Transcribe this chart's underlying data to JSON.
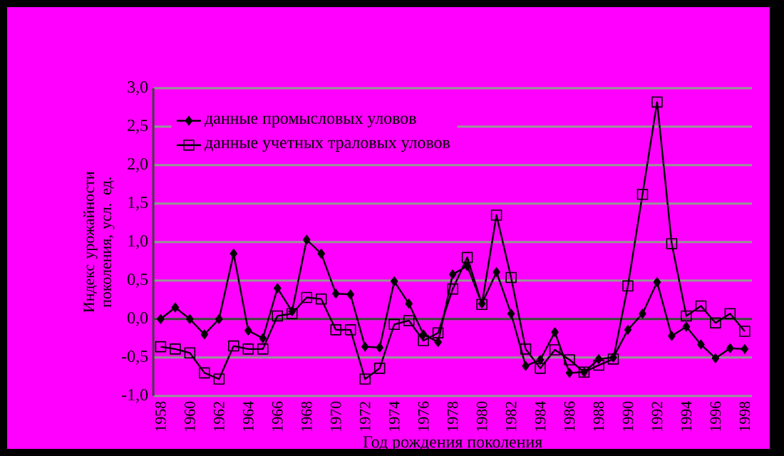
{
  "chart_data": {
    "type": "line",
    "xlabel": "Год рождения поколения",
    "ylabel": "Индекс урожайности поколения, усл. ед.",
    "categories": [
      "1958",
      null,
      "1960",
      null,
      "1962",
      null,
      "1964",
      null,
      "1966",
      null,
      "1968",
      null,
      "1970",
      null,
      "1972",
      null,
      "1974",
      null,
      "1976",
      null,
      "1978",
      null,
      "1980",
      null,
      "1982",
      null,
      "1984",
      null,
      "1986",
      null,
      "1988",
      null,
      "1990",
      null,
      "1992",
      null,
      "1994",
      null,
      "1996",
      null,
      "1998"
    ],
    "series": [
      {
        "name": "данные промысловых уловов",
        "color": "#000000",
        "marker": "diamond",
        "values": [
          0.0,
          0.15,
          0.0,
          -0.2,
          0.0,
          0.85,
          -0.15,
          -0.25,
          0.4,
          0.1,
          1.03,
          0.85,
          0.33,
          0.32,
          -0.36,
          -0.37,
          0.49,
          0.2,
          -0.2,
          -0.3,
          0.58,
          0.69,
          0.2,
          0.61,
          0.07,
          -0.61,
          -0.53,
          -0.17,
          -0.7,
          -0.69,
          -0.52,
          -0.5,
          -0.14,
          0.07,
          0.48,
          -0.22,
          -0.1,
          -0.33,
          -0.51,
          -0.38,
          -0.39
        ]
      },
      {
        "name": "данные учетных траловых уловов",
        "color": "#000000",
        "marker": "square",
        "values": [
          -0.36,
          -0.39,
          -0.44,
          -0.7,
          -0.78,
          -0.35,
          -0.39,
          -0.39,
          0.04,
          0.07,
          0.28,
          0.26,
          -0.14,
          -0.14,
          -0.78,
          -0.64,
          -0.07,
          -0.02,
          -0.28,
          -0.18,
          0.39,
          0.8,
          0.19,
          1.35,
          0.54,
          -0.39,
          -0.64,
          -0.4,
          -0.53,
          -0.69,
          -0.6,
          -0.52,
          0.43,
          1.62,
          2.82,
          0.98,
          0.04,
          0.17,
          -0.05,
          0.07,
          -0.16
        ]
      }
    ],
    "ylim": [
      -1.0,
      3.0
    ],
    "yticks": [
      {
        "value": -1.0,
        "label": "-1,0"
      },
      {
        "value": -0.5,
        "label": "-0,5"
      },
      {
        "value": 0.0,
        "label": "0,0"
      },
      {
        "value": 0.5,
        "label": "0,5"
      },
      {
        "value": 1.0,
        "label": "1,0"
      },
      {
        "value": 1.5,
        "label": "1,5"
      },
      {
        "value": 2.0,
        "label": "2,0"
      },
      {
        "value": 2.5,
        "label": "2,5"
      },
      {
        "value": 3.0,
        "label": "3,0"
      }
    ],
    "grid": "y",
    "legend": "top left",
    "line_style": "solid"
  }
}
